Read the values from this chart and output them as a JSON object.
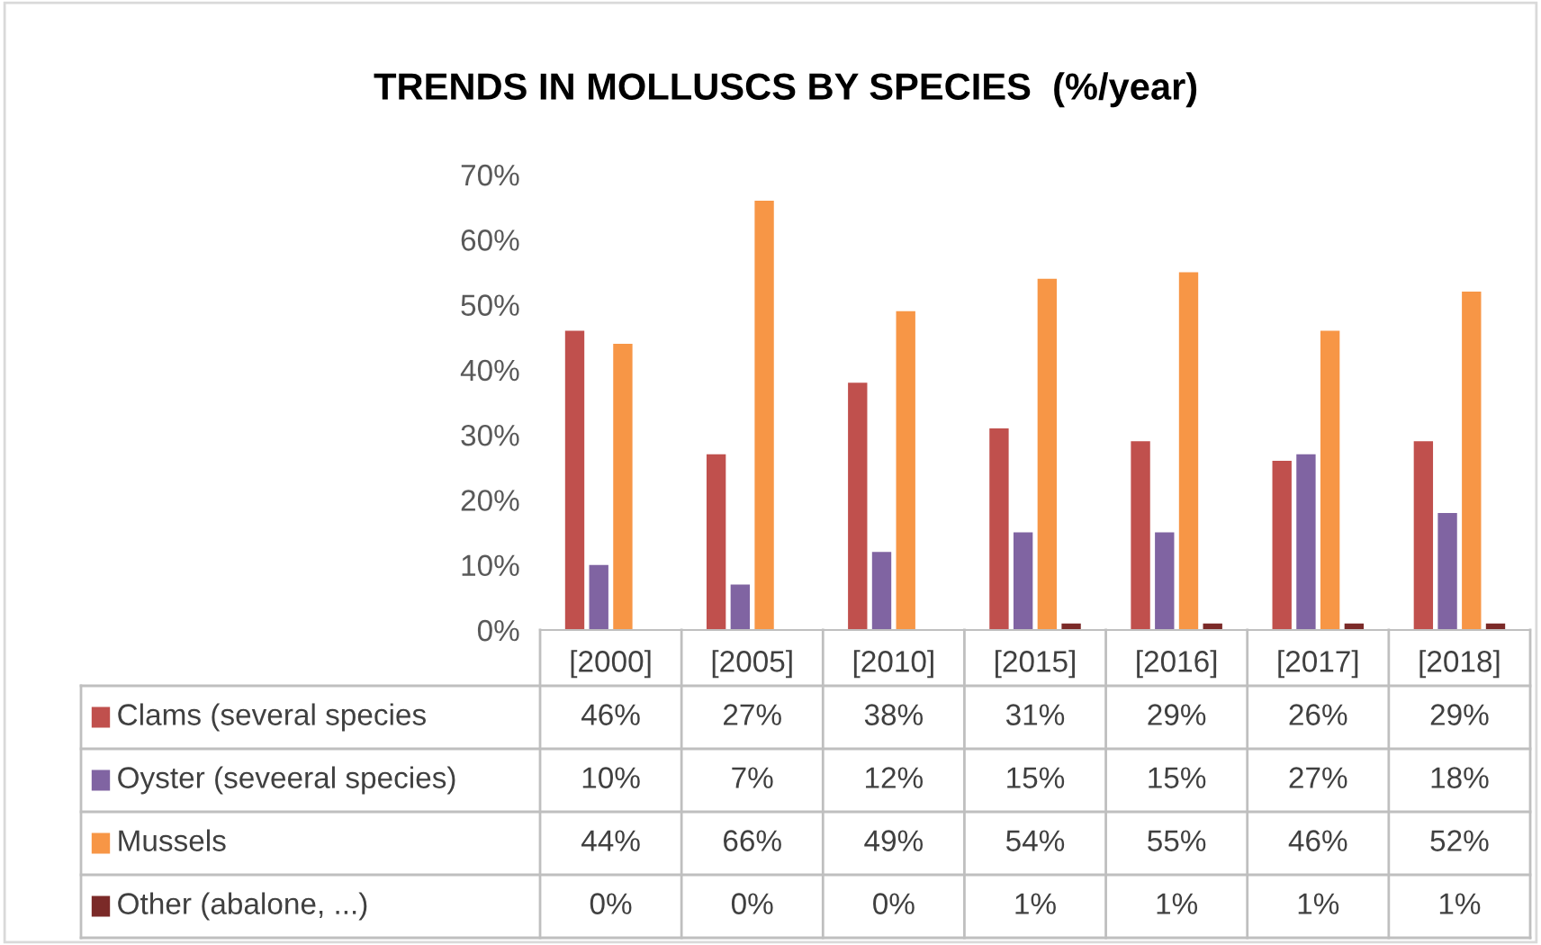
{
  "chart_data": {
    "type": "bar",
    "title": "TRENDS IN MOLLUSCS BY SPECIES  (%/year)",
    "categories": [
      "[2000]",
      "[2005]",
      "[2010]",
      "[2015]",
      "[2016]",
      "[2017]",
      "[2018]"
    ],
    "series": [
      {
        "name": "Clams (several species",
        "color": "#c0504d",
        "values": [
          46,
          27,
          38,
          31,
          29,
          26,
          29
        ],
        "value_labels": [
          "46%",
          "27%",
          "38%",
          "31%",
          "29%",
          "26%",
          "29%"
        ]
      },
      {
        "name": "Oyster (seveeral species)",
        "color": "#8064a2",
        "values": [
          10,
          7,
          12,
          15,
          15,
          27,
          18
        ],
        "value_labels": [
          "10%",
          "7%",
          "12%",
          "15%",
          "15%",
          "27%",
          "18%"
        ]
      },
      {
        "name": "Mussels",
        "color": "#f79646",
        "values": [
          44,
          66,
          49,
          54,
          55,
          46,
          52
        ],
        "value_labels": [
          "44%",
          "66%",
          "49%",
          "54%",
          "55%",
          "46%",
          "52%"
        ]
      },
      {
        "name": "Other (abalone, ...)",
        "color": "#7b2a28",
        "values": [
          0,
          0,
          0,
          1,
          1,
          1,
          1
        ],
        "value_labels": [
          "0%",
          "0%",
          "0%",
          "1%",
          "1%",
          "1%",
          "1%"
        ]
      }
    ],
    "legend": "bottom",
    "ylim": [
      0,
      70
    ],
    "yticks": [
      {
        "value": 0,
        "label": "0%"
      },
      {
        "value": 10,
        "label": "10%"
      },
      {
        "value": 20,
        "label": "20%"
      },
      {
        "value": 30,
        "label": "30%"
      },
      {
        "value": 40,
        "label": "40%"
      },
      {
        "value": 50,
        "label": "50%"
      },
      {
        "value": 60,
        "label": "60%"
      },
      {
        "value": 70,
        "label": "70%"
      }
    ]
  }
}
